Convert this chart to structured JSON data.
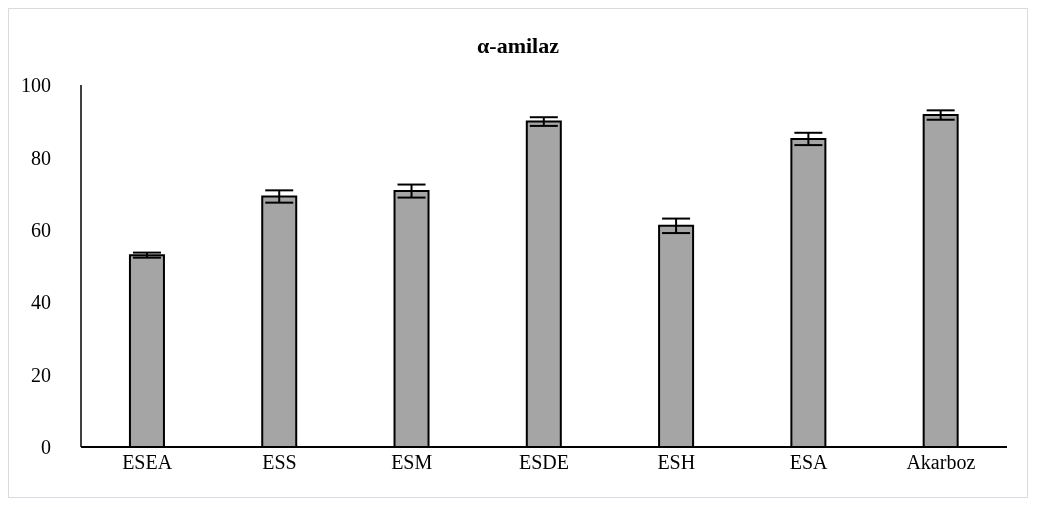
{
  "chart_data": {
    "type": "bar",
    "title": "α-amilaz",
    "categories": [
      "ESEA",
      "ESS",
      "ESM",
      "ESDE",
      "ESH",
      "ESA",
      "Akarboz"
    ],
    "values": [
      53.0,
      69.2,
      70.7,
      89.9,
      61.1,
      85.1,
      91.7
    ],
    "errors": [
      0.7,
      1.7,
      1.8,
      1.2,
      2.0,
      1.7,
      1.3
    ],
    "color": "#a5a5a5",
    "ylim": [
      0,
      100
    ],
    "yticks": [
      0,
      20,
      40,
      60,
      80,
      100
    ],
    "grid": false,
    "legend": false
  }
}
